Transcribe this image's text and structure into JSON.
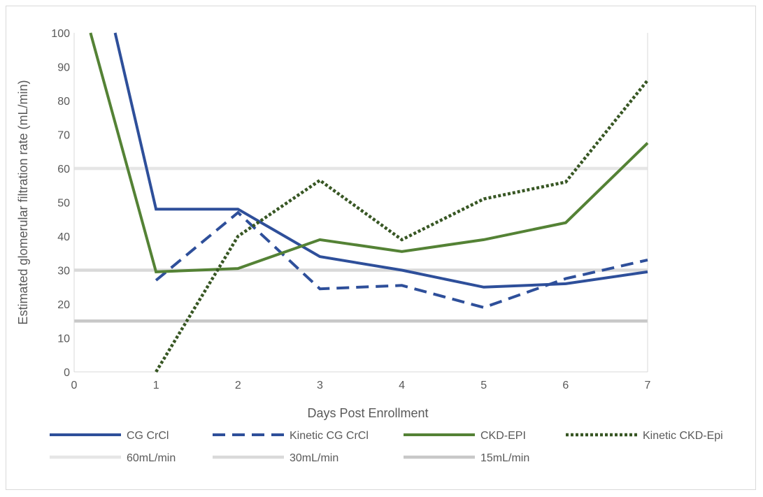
{
  "chart_data": {
    "type": "line",
    "title": "",
    "xlabel": "Days Post Enrollment",
    "ylabel": "Estimated glomerular filtration rate (mL/min)",
    "xlim": [
      0,
      7
    ],
    "ylim": [
      0,
      100
    ],
    "xticks": [
      "0",
      "1",
      "2",
      "3",
      "4",
      "5",
      "6",
      "7"
    ],
    "yticks": [
      "0",
      "10",
      "20",
      "30",
      "40",
      "50",
      "60",
      "70",
      "80",
      "90",
      "100"
    ],
    "legend_position": "bottom",
    "grid": false,
    "series": [
      {
        "name": "CG CrCl",
        "color": "#2e4f9a",
        "style": "solid",
        "x": [
          0.5,
          1,
          2,
          3,
          4,
          5,
          6,
          7
        ],
        "y": [
          100,
          48,
          48,
          34,
          30,
          25,
          26,
          29.5
        ]
      },
      {
        "name": "Kinetic CG CrCl",
        "color": "#2e4f9a",
        "style": "dashed",
        "x": [
          1,
          2,
          3,
          4,
          5,
          6,
          7
        ],
        "y": [
          27,
          47,
          24.5,
          25.5,
          19,
          27.5,
          33
        ]
      },
      {
        "name": "CKD-EPI",
        "color": "#548235",
        "style": "solid",
        "x": [
          0.2,
          1,
          2,
          3,
          4,
          5,
          6,
          7
        ],
        "y": [
          100,
          29.5,
          30.5,
          39,
          35.5,
          39,
          44,
          67.5
        ]
      },
      {
        "name": "Kinetic CKD-Epi",
        "color": "#375623",
        "style": "dotted",
        "x": [
          1,
          2,
          3,
          4,
          5,
          6,
          7
        ],
        "y": [
          0,
          40,
          56.5,
          39,
          51,
          56,
          86
        ]
      },
      {
        "name": "60mL/min",
        "color": "#e6e6e6",
        "style": "reference",
        "x": [
          0,
          7
        ],
        "y": [
          60,
          60
        ]
      },
      {
        "name": "30mL/min",
        "color": "#d9d9d9",
        "style": "reference",
        "x": [
          0,
          7
        ],
        "y": [
          30,
          30
        ]
      },
      {
        "name": "15mL/min",
        "color": "#c8c8c8",
        "style": "reference",
        "x": [
          0,
          7
        ],
        "y": [
          15,
          15
        ]
      }
    ]
  }
}
